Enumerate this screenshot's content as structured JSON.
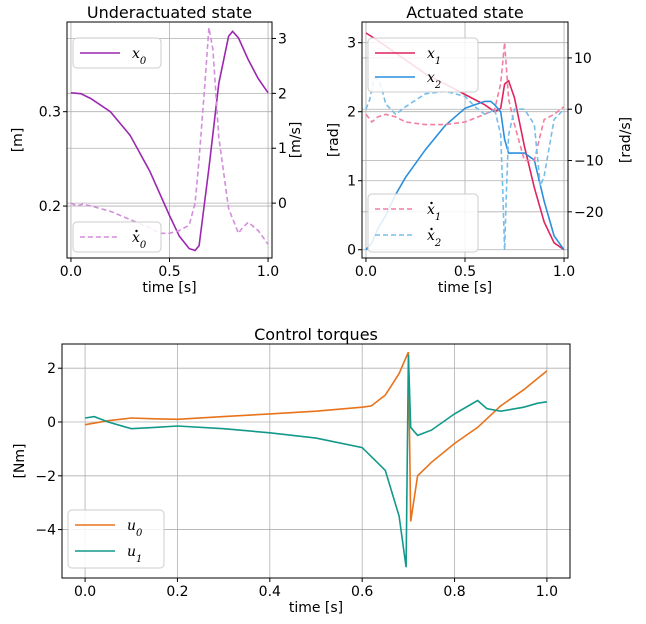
{
  "chart_data": [
    {
      "id": "underactuated",
      "type": "line",
      "title": "Underactuated state",
      "xlabel": "time [s]",
      "ylabel_left": "[m]",
      "ylabel_right": "[m/s]",
      "xlim": [
        -0.02,
        1.02
      ],
      "ylim_left": [
        0.145,
        0.395
      ],
      "ylim_right": [
        -1.0,
        3.3
      ],
      "xticks": [
        "0.0",
        "0.5",
        "1.0"
      ],
      "yticks_left": [
        "0.2",
        "0.3"
      ],
      "yticks_right": [
        "0",
        "1",
        "2",
        "3"
      ],
      "grid": true,
      "series": [
        {
          "name": "x_0",
          "axis": "left",
          "color": "#9c27b0",
          "dashed": false,
          "x": [
            0.0,
            0.05,
            0.1,
            0.2,
            0.3,
            0.4,
            0.5,
            0.55,
            0.6,
            0.63,
            0.65,
            0.7,
            0.75,
            0.8,
            0.82,
            0.85,
            0.9,
            0.95,
            1.0
          ],
          "y": [
            0.32,
            0.319,
            0.314,
            0.3,
            0.275,
            0.237,
            0.19,
            0.168,
            0.155,
            0.153,
            0.158,
            0.24,
            0.33,
            0.38,
            0.385,
            0.378,
            0.355,
            0.335,
            0.32
          ]
        },
        {
          "name": "x_0 dot",
          "axis": "right",
          "color": "#d38fdc",
          "dashed": true,
          "x": [
            0.0,
            0.03,
            0.06,
            0.1,
            0.15,
            0.2,
            0.3,
            0.4,
            0.45,
            0.5,
            0.55,
            0.6,
            0.63,
            0.65,
            0.68,
            0.7,
            0.72,
            0.75,
            0.8,
            0.85,
            0.87,
            0.9,
            0.95,
            1.0
          ],
          "y": [
            0.0,
            -0.05,
            -0.02,
            -0.05,
            -0.1,
            -0.15,
            -0.3,
            -0.45,
            -0.55,
            -0.55,
            -0.5,
            -0.4,
            0.0,
            0.8,
            2.2,
            3.2,
            2.8,
            1.2,
            -0.1,
            -0.55,
            -0.45,
            -0.35,
            -0.5,
            -0.75
          ]
        }
      ]
    },
    {
      "id": "actuated",
      "type": "line",
      "title": "Actuated state",
      "xlabel": "time [s]",
      "ylabel_left": "[rad]",
      "ylabel_right": "[rad/s]",
      "xlim": [
        -0.02,
        1.02
      ],
      "ylim_left": [
        -0.12,
        3.3
      ],
      "ylim_right": [
        -29.0,
        17.0
      ],
      "xticks": [
        "0.0",
        "0.5",
        "1.0"
      ],
      "yticks_left": [
        "0",
        "1",
        "2",
        "3"
      ],
      "yticks_right": [
        "−20",
        "−10",
        "0",
        "10"
      ],
      "grid": true,
      "series": [
        {
          "name": "x_1",
          "axis": "left",
          "color": "#e0245e",
          "dashed": false,
          "x": [
            0.0,
            0.05,
            0.1,
            0.2,
            0.3,
            0.4,
            0.5,
            0.6,
            0.65,
            0.68,
            0.7,
            0.72,
            0.75,
            0.8,
            0.85,
            0.9,
            0.95,
            1.0
          ],
          "y": [
            3.14,
            3.05,
            2.95,
            2.75,
            2.55,
            2.4,
            2.25,
            2.1,
            2.0,
            2.05,
            2.4,
            2.45,
            2.2,
            1.5,
            0.9,
            0.4,
            0.1,
            0.0
          ]
        },
        {
          "name": "x_2",
          "axis": "left",
          "color": "#2b8fde",
          "dashed": false,
          "x": [
            0.0,
            0.03,
            0.06,
            0.1,
            0.15,
            0.2,
            0.3,
            0.4,
            0.5,
            0.55,
            0.6,
            0.63,
            0.65,
            0.68,
            0.7,
            0.72,
            0.75,
            0.8,
            0.85,
            0.9,
            0.95,
            1.0
          ],
          "y": [
            0.0,
            0.1,
            0.3,
            0.5,
            0.8,
            1.05,
            1.45,
            1.8,
            2.05,
            2.1,
            2.15,
            2.15,
            2.1,
            2.0,
            1.6,
            1.4,
            1.4,
            1.4,
            1.3,
            0.7,
            0.2,
            0.0
          ]
        },
        {
          "name": "x_1 dot",
          "axis": "right",
          "color": "#f07fa0",
          "dashed": true,
          "x": [
            0.0,
            0.03,
            0.06,
            0.1,
            0.15,
            0.2,
            0.3,
            0.4,
            0.5,
            0.6,
            0.65,
            0.68,
            0.7,
            0.72,
            0.75,
            0.8,
            0.85,
            0.88,
            0.9,
            0.95,
            1.0
          ],
          "y": [
            -1.0,
            -2.5,
            -1.5,
            -1.0,
            -1.5,
            -2.5,
            -3.0,
            -3.0,
            -2.5,
            -1.0,
            0.0,
            5.0,
            13.0,
            2.0,
            -3.0,
            -10.0,
            -10.0,
            -5.0,
            -2.0,
            -1.0,
            0.5
          ]
        },
        {
          "name": "x_2 dot",
          "axis": "right",
          "color": "#76bde9",
          "dashed": true,
          "x": [
            0.0,
            0.02,
            0.04,
            0.06,
            0.08,
            0.1,
            0.15,
            0.2,
            0.3,
            0.4,
            0.5,
            0.55,
            0.6,
            0.63,
            0.65,
            0.68,
            0.69,
            0.7,
            0.71,
            0.72,
            0.75,
            0.8,
            0.85,
            0.88,
            0.9,
            0.95,
            1.0
          ],
          "y": [
            0.0,
            2.0,
            6.0,
            6.0,
            4.0,
            1.0,
            -1.0,
            0.5,
            3.0,
            3.5,
            2.5,
            0.5,
            -1.0,
            -0.5,
            0.0,
            -5.0,
            -15.0,
            -27.5,
            -15.0,
            -5.0,
            0.0,
            0.0,
            -3.0,
            -15.0,
            -13.0,
            -2.0,
            0.0
          ]
        }
      ]
    },
    {
      "id": "torques",
      "type": "line",
      "title": "Control torques",
      "xlabel": "time [s]",
      "ylabel": "[Nm]",
      "xlim": [
        -0.05,
        1.05
      ],
      "ylim": [
        -5.8,
        2.9
      ],
      "xticks": [
        "0.0",
        "0.2",
        "0.4",
        "0.6",
        "0.8",
        "1.0"
      ],
      "yticks": [
        "−4",
        "−2",
        "0",
        "2"
      ],
      "grid": true,
      "series": [
        {
          "name": "u_0",
          "color": "#e8731c",
          "dashed": false,
          "x": [
            0.0,
            0.05,
            0.1,
            0.15,
            0.2,
            0.3,
            0.4,
            0.5,
            0.6,
            0.62,
            0.65,
            0.68,
            0.69,
            0.7,
            0.705,
            0.72,
            0.75,
            0.8,
            0.85,
            0.9,
            0.95,
            1.0
          ],
          "y": [
            -0.1,
            0.05,
            0.15,
            0.12,
            0.1,
            0.2,
            0.3,
            0.4,
            0.55,
            0.6,
            1.0,
            1.8,
            2.2,
            2.6,
            -3.7,
            -2.0,
            -1.5,
            -0.8,
            -0.2,
            0.6,
            1.2,
            1.9
          ]
        },
        {
          "name": "u_1",
          "color": "#12998a",
          "dashed": false,
          "x": [
            0.0,
            0.02,
            0.05,
            0.1,
            0.15,
            0.2,
            0.3,
            0.4,
            0.5,
            0.6,
            0.65,
            0.68,
            0.695,
            0.7,
            0.705,
            0.72,
            0.75,
            0.8,
            0.85,
            0.87,
            0.9,
            0.95,
            0.98,
            1.0
          ],
          "y": [
            0.15,
            0.2,
            0.0,
            -0.25,
            -0.2,
            -0.15,
            -0.25,
            -0.4,
            -0.6,
            -0.95,
            -1.8,
            -3.5,
            -5.4,
            2.5,
            -0.2,
            -0.5,
            -0.3,
            0.3,
            0.8,
            0.5,
            0.4,
            0.55,
            0.7,
            0.75
          ]
        }
      ]
    }
  ]
}
